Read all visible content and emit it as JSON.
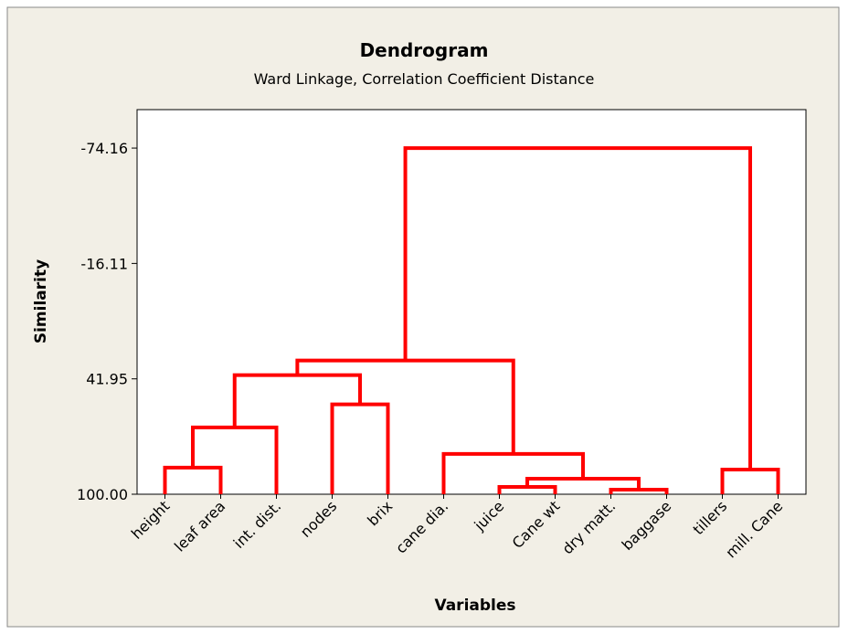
{
  "chart_data": {
    "type": "dendrogram",
    "title": "Dendrogram",
    "subtitle": "Ward Linkage, Correlation Coefficient Distance",
    "x_label": "Variables",
    "y_label": "Similarity",
    "color": "#ff0000",
    "leaves": [
      "height",
      "leaf area",
      "int. dist.",
      "nodes",
      "brix",
      "cane dia.",
      "juice",
      "Cane wt",
      "dry matt.",
      "baggase",
      "tillers",
      "mill. Cane"
    ],
    "merges": [
      {
        "left": 8,
        "right": 9,
        "height": 97.7
      },
      {
        "left": 6,
        "right": 7,
        "height": 96.3
      },
      {
        "left": 13,
        "right": 12,
        "height": 92.2
      },
      {
        "left": 0,
        "right": 1,
        "height": 86.6
      },
      {
        "left": 10,
        "right": 11,
        "height": 87.6
      },
      {
        "left": 5,
        "right": 14,
        "height": 79.7
      },
      {
        "left": 15,
        "right": 2,
        "height": 66.4
      },
      {
        "left": 3,
        "right": 4,
        "height": 54.8
      },
      {
        "left": 18,
        "right": 19,
        "height": 40.1
      },
      {
        "left": 20,
        "right": 17,
        "height": 32.7
      },
      {
        "left": 21,
        "right": 16,
        "height": -74.16
      }
    ],
    "ylim": [
      100,
      -93.5
    ],
    "yticks": [
      {
        "value": 100,
        "label": "100.00"
      },
      41.95,
      -16.11,
      -74.16
    ]
  }
}
